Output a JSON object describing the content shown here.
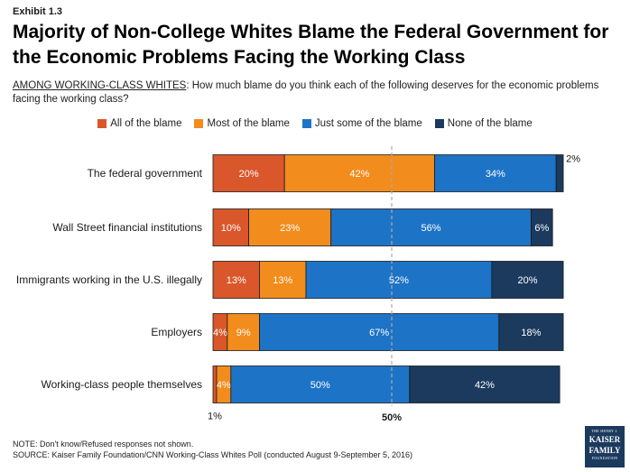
{
  "exhibit": "Exhibit 1.3",
  "title": "Majority of Non-College Whites Blame the Federal Government for the Economic Problems Facing the Working Class",
  "subtitle_prefix": "AMONG WORKING-CLASS WHITES",
  "subtitle_text": ":  How much blame do you think each of the following deserves for the economic problems facing the working class?",
  "colors": {
    "all": "#d9572a",
    "most": "#f28c1c",
    "some": "#1d73c6",
    "none": "#1b3a5e",
    "reference_line": "#aaaaaa"
  },
  "chart_data": {
    "type": "bar",
    "orientation": "horizontal",
    "stacked": true,
    "xlim": [
      0,
      100
    ],
    "categories": [
      "The federal government",
      "Wall Street financial institutions",
      "Immigrants working in the U.S. illegally",
      "Employers",
      "Working-class people themselves"
    ],
    "series": [
      {
        "name": "All of the blame",
        "values": [
          20,
          10,
          13,
          4,
          1
        ]
      },
      {
        "name": "Most of the blame",
        "values": [
          42,
          23,
          13,
          9,
          4
        ]
      },
      {
        "name": "Just some of the blame",
        "values": [
          34,
          56,
          52,
          67,
          50
        ]
      },
      {
        "name": "None of the blame",
        "values": [
          2,
          6,
          20,
          18,
          42
        ]
      }
    ],
    "reference_line": {
      "value": 50,
      "label": "50%"
    },
    "legend_position": "top"
  },
  "footnote_line1": "NOTE: Don't know/Refused responses not shown.",
  "footnote_line2": "SOURCE: Kaiser Family Foundation/CNN Working-Class Whites Poll (conducted August 9-September 5, 2016)",
  "logo": {
    "line1": "THE HENRY J.",
    "line2a": "KAISER",
    "line2b": "FAMILY",
    "line3": "FOUNDATION"
  }
}
